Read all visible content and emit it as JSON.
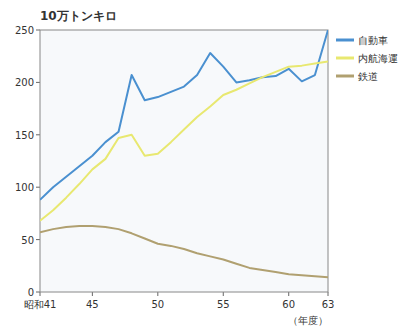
{
  "chart_data": {
    "type": "line",
    "title": "10万トンキロ",
    "x_label": "（年度）",
    "x": [
      41,
      42,
      43,
      44,
      45,
      46,
      47,
      48,
      49,
      50,
      51,
      52,
      53,
      54,
      55,
      56,
      57,
      58,
      59,
      60,
      61,
      62,
      63
    ],
    "series": [
      {
        "name": "自動車",
        "color": "#4a90d0",
        "values": [
          88,
          100,
          110,
          120,
          130,
          143,
          153,
          207,
          183,
          186,
          191,
          196,
          207,
          228,
          215,
          200,
          202,
          205,
          206,
          213,
          201,
          207,
          250
        ]
      },
      {
        "name": "内航海運",
        "color": "#e8e870",
        "values": [
          68,
          78,
          90,
          103,
          117,
          127,
          147,
          150,
          130,
          132,
          143,
          155,
          167,
          177,
          188,
          193,
          199,
          205,
          210,
          215,
          216,
          218,
          220
        ]
      },
      {
        "name": "鉄道",
        "color": "#b0a070",
        "values": [
          57,
          60,
          62,
          63,
          63,
          62,
          60,
          56,
          51,
          46,
          44,
          41,
          37,
          34,
          31,
          27,
          23,
          21,
          19,
          17,
          16,
          15,
          14
        ]
      }
    ],
    "xlim": [
      41,
      63
    ],
    "xticks": [
      {
        "value": 41,
        "label": "昭和41"
      },
      45,
      50,
      55,
      60,
      63
    ],
    "ylim": [
      0,
      250
    ],
    "yticks": [
      0,
      50,
      100,
      150,
      200,
      250
    ],
    "grid": false,
    "legend": "right"
  }
}
